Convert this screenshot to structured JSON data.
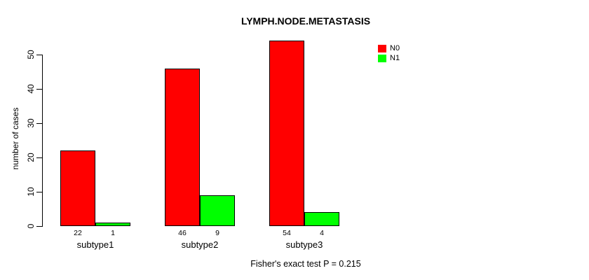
{
  "title": "LYMPH.NODE.METASTASIS",
  "ylabel": "number of cases",
  "footer": "Fisher's exact test P = 0.215",
  "legend": {
    "position": "top-right",
    "items": [
      {
        "label": "N0",
        "color": "#ff0000"
      },
      {
        "label": "N1",
        "color": "#00ff00"
      }
    ]
  },
  "chart_data": {
    "type": "bar",
    "grouped": true,
    "title": "LYMPH.NODE.METASTASIS",
    "xlabel": "",
    "ylabel": "number of cases",
    "categories": [
      "subtype1",
      "subtype2",
      "subtype3"
    ],
    "series": [
      {
        "name": "N0",
        "color": "#ff0000",
        "values": [
          22,
          46,
          54
        ]
      },
      {
        "name": "N1",
        "color": "#00ff00",
        "values": [
          1,
          9,
          4
        ]
      }
    ],
    "bar_value_labels": [
      [
        "22",
        "46",
        "54"
      ],
      [
        "1",
        "9",
        "4"
      ]
    ],
    "ylim": [
      0,
      50
    ],
    "yticks": [
      0,
      10,
      20,
      30,
      40,
      50
    ],
    "grid": false,
    "legend_position": "top-right",
    "annotation": "Fisher's exact test P = 0.215"
  }
}
